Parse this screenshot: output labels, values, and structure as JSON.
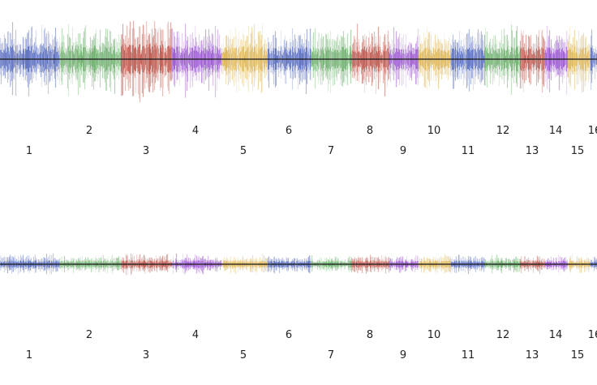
{
  "chart_data": [
    {
      "type": "bar",
      "title": "",
      "xlabel": "",
      "ylabel": "",
      "grid": false,
      "legend": "none",
      "baseline_color": "#1a1a1a",
      "series_colors": [
        "#3a52b4",
        "#56a356",
        "#b23a2e",
        "#8a3cc8",
        "#d8aa3c"
      ],
      "segments": [
        {
          "label": "1",
          "color": "#3a52b4",
          "amplitude": 0.6
        },
        {
          "label": "2",
          "color": "#56a356",
          "amplitude": 0.6
        },
        {
          "label": "3",
          "color": "#b23a2e",
          "amplitude": 0.68
        },
        {
          "label": "4",
          "color": "#8a3cc8",
          "amplitude": 0.62
        },
        {
          "label": "5",
          "color": "#d8aa3c",
          "amplitude": 0.58
        },
        {
          "label": "6",
          "color": "#3a52b4",
          "amplitude": 0.55
        },
        {
          "label": "7",
          "color": "#56a356",
          "amplitude": 0.55
        },
        {
          "label": "8",
          "color": "#b23a2e",
          "amplitude": 0.6
        },
        {
          "label": "9",
          "color": "#8a3cc8",
          "amplitude": 0.55
        },
        {
          "label": "10",
          "color": "#d8aa3c",
          "amplitude": 0.55
        },
        {
          "label": "11",
          "color": "#3a52b4",
          "amplitude": 0.55
        },
        {
          "label": "12",
          "color": "#56a356",
          "amplitude": 0.55
        },
        {
          "label": "13",
          "color": "#b23a2e",
          "amplitude": 0.55
        },
        {
          "label": "14",
          "color": "#8a3cc8",
          "amplitude": 0.55
        },
        {
          "label": "15",
          "color": "#d8aa3c",
          "amplitude": 0.55
        },
        {
          "label": "16",
          "color": "#3a52b4",
          "amplitude": 0.55
        }
      ]
    },
    {
      "type": "bar",
      "title": "",
      "xlabel": "",
      "ylabel": "",
      "grid": false,
      "legend": "none",
      "baseline_color": "#1a1a1a",
      "series_colors": [
        "#3a52b4",
        "#56a356",
        "#b23a2e",
        "#8a3cc8",
        "#d8aa3c"
      ],
      "segments": [
        {
          "label": "1",
          "color": "#3a52b4",
          "amplitude": 0.3
        },
        {
          "label": "2",
          "color": "#56a356",
          "amplitude": 0.28
        },
        {
          "label": "3",
          "color": "#b23a2e",
          "amplitude": 0.3
        },
        {
          "label": "4",
          "color": "#8a3cc8",
          "amplitude": 0.3
        },
        {
          "label": "5",
          "color": "#d8aa3c",
          "amplitude": 0.28
        },
        {
          "label": "6",
          "color": "#3a52b4",
          "amplitude": 0.26
        },
        {
          "label": "7",
          "color": "#56a356",
          "amplitude": 0.26
        },
        {
          "label": "8",
          "color": "#b23a2e",
          "amplitude": 0.28
        },
        {
          "label": "9",
          "color": "#8a3cc8",
          "amplitude": 0.26
        },
        {
          "label": "10",
          "color": "#d8aa3c",
          "amplitude": 0.26
        },
        {
          "label": "11",
          "color": "#3a52b4",
          "amplitude": 0.28
        },
        {
          "label": "12",
          "color": "#56a356",
          "amplitude": 0.26
        },
        {
          "label": "13",
          "color": "#b23a2e",
          "amplitude": 0.26
        },
        {
          "label": "14",
          "color": "#8a3cc8",
          "amplitude": 0.26
        },
        {
          "label": "15",
          "color": "#d8aa3c",
          "amplitude": 0.26
        },
        {
          "label": "16",
          "color": "#3a52b4",
          "amplitude": 0.26
        }
      ]
    }
  ]
}
